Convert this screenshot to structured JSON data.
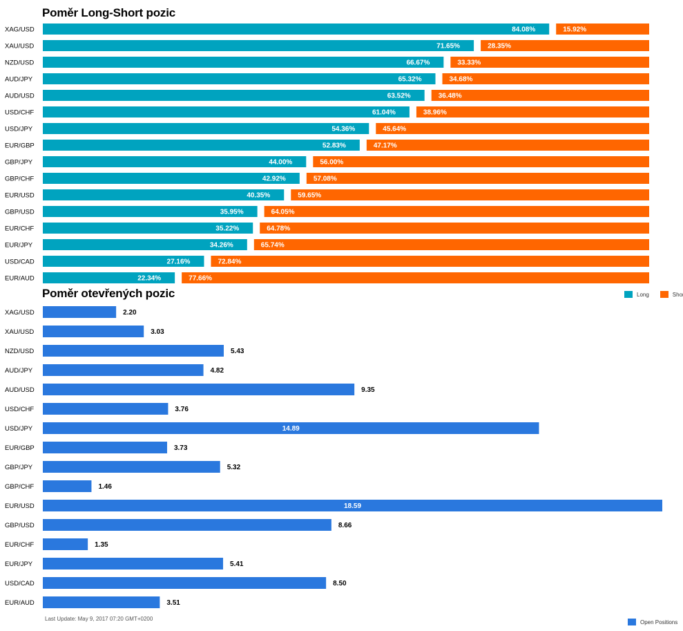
{
  "colors": {
    "long": "#00a3bf",
    "short": "#ff6600",
    "open": "#2a78de"
  },
  "chart_data": [
    {
      "type": "bar",
      "orientation": "horizontal-stacked",
      "title": "Poměr Long-Short pozic",
      "categories": [
        "XAG/USD",
        "XAU/USD",
        "NZD/USD",
        "AUD/JPY",
        "AUD/USD",
        "USD/CHF",
        "USD/JPY",
        "EUR/GBP",
        "GBP/JPY",
        "GBP/CHF",
        "EUR/USD",
        "GBP/USD",
        "EUR/CHF",
        "EUR/JPY",
        "USD/CAD",
        "EUR/AUD"
      ],
      "series": [
        {
          "name": "Long",
          "values": [
            84.08,
            71.65,
            66.67,
            65.32,
            63.52,
            61.04,
            54.36,
            52.83,
            44.0,
            42.92,
            40.35,
            35.95,
            35.22,
            34.26,
            27.16,
            22.34
          ],
          "labels": [
            "84.08%",
            "71.65%",
            "66.67%",
            "65.32%",
            "63.52%",
            "61.04%",
            "54.36%",
            "52.83%",
            "44.00%",
            "42.92%",
            "40.35%",
            "35.95%",
            "35.22%",
            "34.26%",
            "27.16%",
            "22.34%"
          ]
        },
        {
          "name": "Short",
          "values": [
            15.92,
            28.35,
            33.33,
            34.68,
            36.48,
            38.96,
            45.64,
            47.17,
            56.0,
            57.08,
            59.65,
            64.05,
            64.78,
            65.74,
            72.84,
            77.66
          ],
          "labels": [
            "15.92%",
            "28.35%",
            "33.33%",
            "34.68%",
            "36.48%",
            "38.96%",
            "45.64%",
            "47.17%",
            "56.00%",
            "57.08%",
            "59.65%",
            "64.05%",
            "64.78%",
            "65.74%",
            "72.84%",
            "77.66%"
          ]
        }
      ],
      "legend_position": "bottom-right"
    },
    {
      "type": "bar",
      "orientation": "horizontal",
      "title": "Poměr otevřených pozic",
      "categories": [
        "XAG/USD",
        "XAU/USD",
        "NZD/USD",
        "AUD/JPY",
        "AUD/USD",
        "USD/CHF",
        "USD/JPY",
        "EUR/GBP",
        "GBP/JPY",
        "GBP/CHF",
        "EUR/USD",
        "GBP/USD",
        "EUR/CHF",
        "EUR/JPY",
        "USD/CAD",
        "EUR/AUD"
      ],
      "series": [
        {
          "name": "Open Positions",
          "values": [
            2.2,
            3.03,
            5.43,
            4.82,
            9.35,
            3.76,
            14.89,
            3.73,
            5.32,
            1.46,
            18.59,
            8.66,
            1.35,
            5.41,
            8.5,
            3.51
          ],
          "labels": [
            "2.20",
            "3.03",
            "5.43",
            "4.82",
            "9.35",
            "3.76",
            "14.89",
            "3.73",
            "5.32",
            "1.46",
            "18.59",
            "8.66",
            "1.35",
            "5.41",
            "8.50",
            "3.51"
          ]
        }
      ],
      "legend_position": "bottom-right"
    }
  ],
  "footer": {
    "last_update": "Last Update: May 9, 2017 07:20 GMT+0200"
  }
}
